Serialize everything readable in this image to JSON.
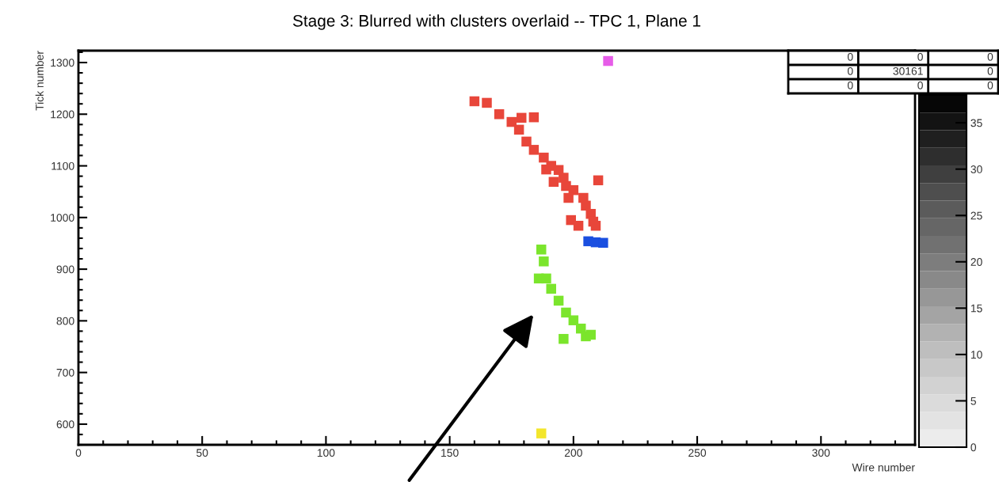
{
  "chart_data": {
    "type": "scatter",
    "title": "Stage 3: Blurred with clusters overlaid -- TPC 1, Plane 1",
    "xlabel": "Wire number",
    "ylabel": "Tick number",
    "marker": "square",
    "grid": false,
    "xlim": [
      0,
      338
    ],
    "ylim": [
      560,
      1323
    ],
    "xticks": [
      0,
      50,
      100,
      150,
      200,
      250,
      300
    ],
    "yticks": [
      600,
      700,
      800,
      900,
      1000,
      1100,
      1200,
      1300
    ],
    "clim": [
      0,
      38
    ],
    "cticks": [
      0,
      5,
      10,
      15,
      20,
      25,
      30,
      35
    ],
    "series": [
      {
        "color": "#e8463a",
        "x": [
          160,
          165,
          170,
          175,
          179,
          184,
          178,
          181,
          184,
          188,
          191,
          194,
          196,
          197,
          200,
          204,
          205,
          207,
          208,
          209,
          210,
          199,
          202,
          189,
          192,
          198
        ],
        "values": [
          1225,
          1222,
          1200,
          1185,
          1193,
          1194,
          1170,
          1147,
          1131,
          1116,
          1100,
          1092,
          1077,
          1061,
          1053,
          1038,
          1023,
          1007,
          992,
          984,
          1072,
          995,
          984,
          1093,
          1069,
          1038
        ]
      },
      {
        "color": "#1a4fe0",
        "x": [
          206,
          209,
          212
        ],
        "values": [
          954,
          952,
          951
        ]
      },
      {
        "color": "#7be52c",
        "x": [
          187,
          188,
          186,
          189,
          191,
          194,
          197,
          200,
          203,
          205,
          207,
          196
        ],
        "values": [
          938,
          915,
          882,
          882,
          862,
          839,
          816,
          801,
          785,
          770,
          773,
          765
        ]
      },
      {
        "color": "#e65ce8",
        "x": [
          214
        ],
        "values": [
          1303
        ]
      },
      {
        "color": "#f3e62c",
        "x": [
          187
        ],
        "values": [
          582
        ]
      }
    ],
    "annotations": [
      "0",
      "0",
      "0",
      "0",
      "30161",
      "0",
      "0",
      "0",
      "0"
    ]
  }
}
